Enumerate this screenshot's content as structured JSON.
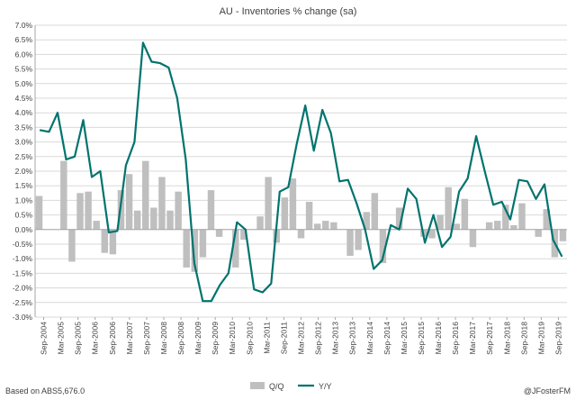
{
  "chart_data": {
    "type": "bar",
    "title": "AU - Inventories % change (sa)",
    "footer_left": "Based on ABS5,676.0",
    "footer_right": "@JFosterFM",
    "ylim": [
      -3.0,
      7.0
    ],
    "ytick_labels": [
      "7.0%",
      "6.5%",
      "6.0%",
      "5.5%",
      "5.0%",
      "4.5%",
      "4.0%",
      "3.5%",
      "3.0%",
      "2.5%",
      "2.0%",
      "1.5%",
      "1.0%",
      "0.5%",
      "0.0%",
      "-0.5%",
      "-1.0%",
      "-1.5%",
      "-2.0%",
      "-2.5%",
      "-3.0%"
    ],
    "xtick_labels": [
      "Sep-2004",
      "Mar-2005",
      "Sep-2005",
      "Mar-2006",
      "Sep-2006",
      "Mar-2007",
      "Sep-2007",
      "Mar-2008",
      "Sep-2008",
      "Mar-2009",
      "Sep-2009",
      "Mar-2010",
      "Sep-2010",
      "Mar-2011",
      "Sep-2011",
      "Mar-2012",
      "Sep-2012",
      "Mar-2013",
      "Sep-2013",
      "Mar-2014",
      "Sep-2014",
      "Mar-2015",
      "Sep-2015",
      "Mar-2016",
      "Sep-2016",
      "Mar-2017",
      "Sep-2017",
      "Mar-2018",
      "Sep-2018",
      "Mar-2019",
      "Sep-2019"
    ],
    "colors": {
      "bar": "#bfbfbf",
      "line": "#00736e",
      "grid": "#d9d9d9",
      "axis": "#404040"
    },
    "grid": true,
    "legend_position": "bottom",
    "series": [
      {
        "name": "Q/Q",
        "type": "bar",
        "values": [
          1.15,
          0.0,
          0.0,
          2.35,
          -1.1,
          1.25,
          1.3,
          0.3,
          -0.8,
          -0.85,
          1.35,
          1.9,
          0.65,
          2.35,
          0.75,
          1.8,
          0.65,
          1.3,
          -1.3,
          -1.45,
          -0.95,
          1.35,
          -0.25,
          0.0,
          -1.3,
          -0.35,
          0.0,
          0.45,
          1.8,
          -0.45,
          1.1,
          1.75,
          -0.3,
          0.95,
          0.2,
          0.3,
          0.25,
          0.0,
          -0.9,
          -0.7,
          0.6,
          1.25,
          -1.15,
          0.0,
          0.75,
          0.0,
          0.0,
          -0.25,
          -0.3,
          0.5,
          1.45,
          0.2,
          1.05,
          -0.6,
          0.0,
          0.25,
          0.3,
          0.85,
          0.15,
          0.9,
          0.0,
          -0.25,
          0.7,
          -0.95,
          -0.4
        ]
      },
      {
        "name": "Y/Y",
        "type": "line",
        "values": [
          3.4,
          3.35,
          4.0,
          2.4,
          2.5,
          3.75,
          1.8,
          2.0,
          -0.1,
          -0.05,
          2.2,
          3.0,
          6.4,
          5.75,
          5.7,
          5.55,
          4.5,
          2.4,
          -1.15,
          -2.45,
          -2.45,
          -1.9,
          -1.5,
          0.25,
          0.0,
          -2.05,
          -2.15,
          -1.85,
          1.3,
          1.45,
          2.95,
          4.25,
          2.7,
          4.1,
          3.3,
          1.65,
          1.7,
          0.9,
          0.0,
          -1.35,
          -1.05,
          0.15,
          0.0,
          1.4,
          1.05,
          -0.45,
          0.5,
          -0.6,
          -0.25,
          1.3,
          1.75,
          3.2,
          2.0,
          0.85,
          0.95,
          0.35,
          1.7,
          1.65,
          1.05,
          1.55,
          -0.35,
          -0.9
        ]
      }
    ]
  }
}
